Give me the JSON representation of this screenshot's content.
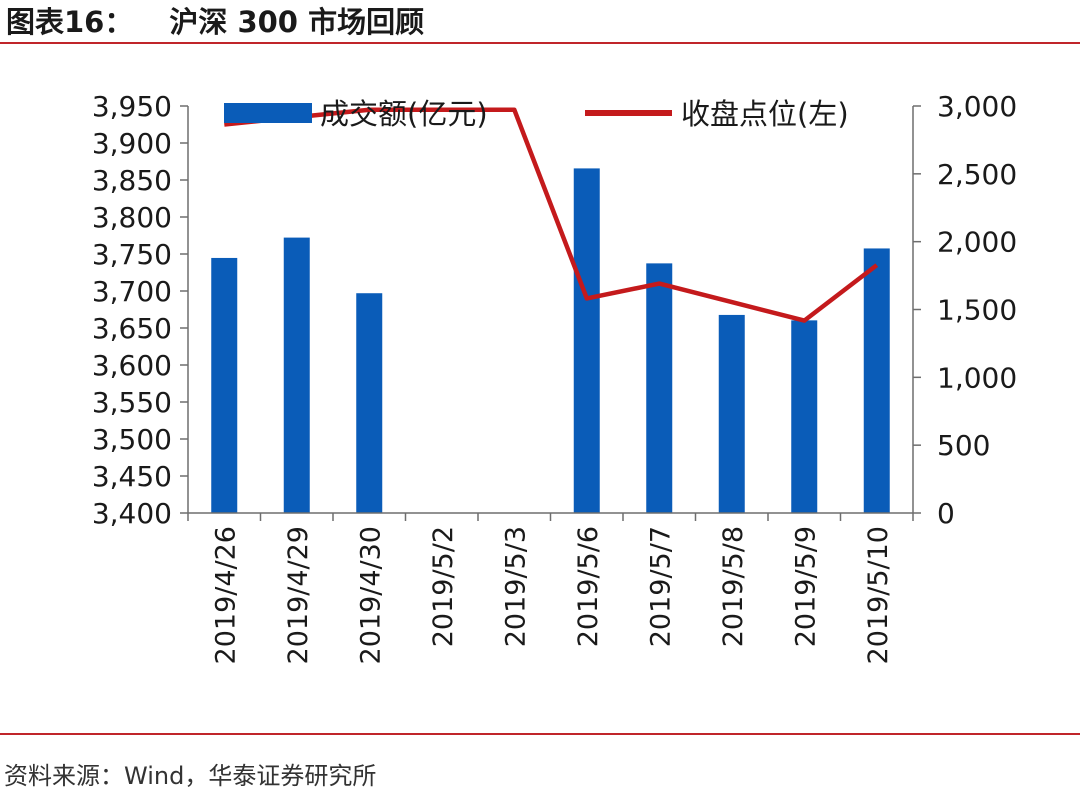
{
  "header": {
    "figure_label": "图表16：",
    "title": "沪深 300 市场回顾"
  },
  "footer": {
    "source": "资料来源：Wind，华泰证券研究所"
  },
  "colors": {
    "bar": "#0a5cb8",
    "line": "#c41a1c",
    "rule": "#c0252a",
    "axis": "#6e6e6e"
  },
  "chart_data": {
    "type": "bar",
    "categories": [
      "2019/4/26",
      "2019/4/29",
      "2019/4/30",
      "2019/5/2",
      "2019/5/3",
      "2019/5/6",
      "2019/5/7",
      "2019/5/8",
      "2019/5/9",
      "2019/5/10"
    ],
    "series": [
      {
        "name": "成交额(亿元)",
        "type": "bar",
        "axis": "right",
        "values": [
          1880,
          2030,
          1620,
          null,
          null,
          2540,
          1840,
          1460,
          1420,
          1950
        ]
      },
      {
        "name": "收盘点位(左)",
        "type": "line",
        "axis": "left",
        "values": [
          3925,
          3935,
          3945,
          3945,
          3945,
          3690,
          3710,
          3685,
          3660,
          3735
        ]
      }
    ],
    "y_left": {
      "range": [
        3400,
        3950
      ],
      "ticks": [
        "3,400",
        "3,450",
        "3,500",
        "3,550",
        "3,600",
        "3,650",
        "3,700",
        "3,750",
        "3,800",
        "3,850",
        "3,900",
        "3,950"
      ]
    },
    "y_right": {
      "range": [
        0,
        3000
      ],
      "ticks": [
        "0",
        "500",
        "1,000",
        "1,500",
        "2,000",
        "2,500",
        "3,000"
      ]
    },
    "legend": {
      "position": "top"
    },
    "grid": false
  }
}
